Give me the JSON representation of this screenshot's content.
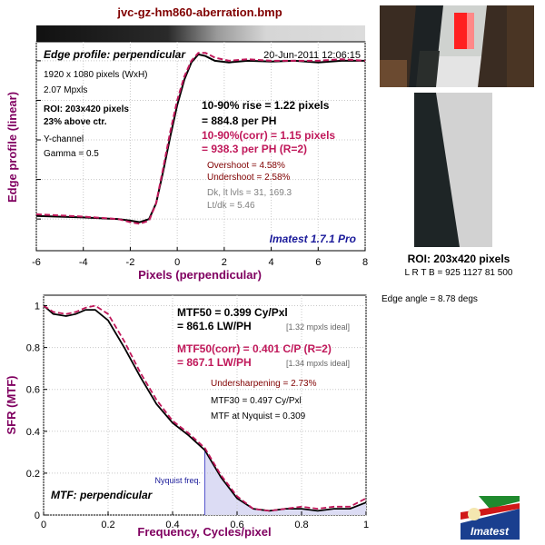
{
  "window": {
    "title": "jvc-gz-hm860-aberration.bmp"
  },
  "top_panel": {
    "header": "Edge profile: perpendicular",
    "date": "20-Jun-2011 12:06:15",
    "info_lines": [
      "1920 x 1080 pixels (WxH)",
      "2.07 Mpxls"
    ],
    "roi_lines": [
      "ROI: 203x420 pixels",
      "23% above ctr."
    ],
    "channel_lines": [
      "Y-channel",
      "Gamma = 0.5"
    ],
    "rise": {
      "line1": "10-90% rise = 1.22 pixels",
      "line2": "= 884.8 per PH"
    },
    "rise_corr": {
      "line1": "10-90%(corr) = 1.15 pixels",
      "line2": "= 938.3 per PH  (R=2)"
    },
    "overshoot": "Overshoot = 4.58%",
    "undershoot": "Undershoot = 2.58%",
    "dk": "Dk, lt lvls = 31, 169.3",
    "ltdk": "Lt/dk = 5.46",
    "brand": "Imatest 1.7.1 Pro"
  },
  "bottom_panel": {
    "header": "MTF: perpendicular",
    "mtf50": {
      "line1": "MTF50 = 0.399 Cy/Pxl",
      "line2": "= 861.6 LW/PH",
      "ideal": "[1.32 mpxls ideal]"
    },
    "mtf50_corr": {
      "line1": "MTF50(corr) = 0.401 C/P  (R=2)",
      "line2": "= 867.1 LW/PH",
      "ideal": "[1.34 mpxls ideal]"
    },
    "undersharpening": "Undersharpening = 2.73%",
    "mtf30": "MTF30 = 0.497 Cy/Pxl",
    "mtf_nyquist": "MTF at Nyquist = 0.309",
    "nyquist_label": "Nyquist freq."
  },
  "side": {
    "roi_label": "ROI: 203x420 pixels",
    "roi_coords": "L R  T B = 925 1127  81 500",
    "edge_angle": "Edge angle = 8.78 degs",
    "logo_text": "Imatest"
  },
  "colors": {
    "measured": "#000000",
    "corrected": "#c0185a",
    "title": "#800000",
    "axis_label": "#800060",
    "brand": "#1a1a9a",
    "nyquist_fill": "#dcdcf4"
  },
  "chart_data": [
    {
      "type": "line",
      "title": "Edge profile: perpendicular",
      "xlabel": "Pixels (perpendicular)",
      "ylabel": "Edge profile (linear)",
      "xlim": [
        -6,
        8
      ],
      "xticks": [
        -6,
        -4,
        -2,
        0,
        2,
        4,
        6,
        8
      ],
      "grid": true,
      "series": [
        {
          "x": [
            -6,
            -4,
            -2.5,
            -2,
            -1.6,
            -1.2,
            -0.9,
            -0.6,
            -0.3,
            0,
            0.3,
            0.6,
            0.9,
            1.2,
            1.6,
            2.2,
            3,
            4,
            5,
            6,
            7,
            8
          ],
          "y": [
            0.02,
            0.01,
            0.0,
            -0.01,
            -0.02,
            0.0,
            0.1,
            0.3,
            0.52,
            0.72,
            0.88,
            0.99,
            1.04,
            1.03,
            1.0,
            0.99,
            1.0,
            0.995,
            1.0,
            0.99,
            1.0,
            1.0
          ]
        },
        {
          "x": [
            -6,
            -4,
            -2.5,
            -2,
            -1.6,
            -1.2,
            -0.9,
            -0.6,
            -0.3,
            0,
            0.3,
            0.6,
            0.9,
            1.2,
            1.6,
            2.2,
            3,
            4,
            5,
            6,
            7,
            8
          ],
          "y": [
            0.03,
            0.015,
            0.0,
            -0.02,
            -0.03,
            -0.01,
            0.1,
            0.32,
            0.55,
            0.75,
            0.9,
            1.0,
            1.05,
            1.05,
            1.02,
            1.0,
            1.01,
            1.0,
            1.0,
            1.0,
            1.01,
            1.0
          ]
        }
      ]
    },
    {
      "type": "line",
      "title": "MTF: perpendicular",
      "xlabel": "Frequency, Cycles/pixel",
      "ylabel": "SFR (MTF)",
      "xlim": [
        0,
        1
      ],
      "ylim": [
        0,
        1.05
      ],
      "xticks": [
        0,
        0.2,
        0.4,
        0.6,
        0.8,
        1
      ],
      "yticks": [
        0,
        0.2,
        0.4,
        0.6,
        0.8,
        1
      ],
      "grid": true,
      "nyquist": 0.5,
      "series": [
        {
          "x": [
            0,
            0.03,
            0.07,
            0.1,
            0.13,
            0.16,
            0.2,
            0.25,
            0.3,
            0.35,
            0.4,
            0.45,
            0.5,
            0.55,
            0.6,
            0.65,
            0.7,
            0.75,
            0.8,
            0.85,
            0.9,
            0.95,
            1.0
          ],
          "y": [
            1.0,
            0.96,
            0.95,
            0.96,
            0.98,
            0.98,
            0.93,
            0.8,
            0.66,
            0.53,
            0.44,
            0.38,
            0.31,
            0.18,
            0.08,
            0.03,
            0.02,
            0.03,
            0.03,
            0.02,
            0.03,
            0.03,
            0.06
          ]
        },
        {
          "x": [
            0,
            0.03,
            0.07,
            0.1,
            0.13,
            0.16,
            0.2,
            0.25,
            0.3,
            0.35,
            0.4,
            0.45,
            0.5,
            0.55,
            0.6,
            0.65,
            0.7,
            0.75,
            0.8,
            0.85,
            0.9,
            0.95,
            1.0
          ],
          "y": [
            1.0,
            0.97,
            0.96,
            0.97,
            0.99,
            1.0,
            0.96,
            0.83,
            0.68,
            0.55,
            0.45,
            0.39,
            0.32,
            0.19,
            0.09,
            0.03,
            0.02,
            0.03,
            0.04,
            0.03,
            0.04,
            0.04,
            0.08
          ]
        }
      ]
    }
  ]
}
